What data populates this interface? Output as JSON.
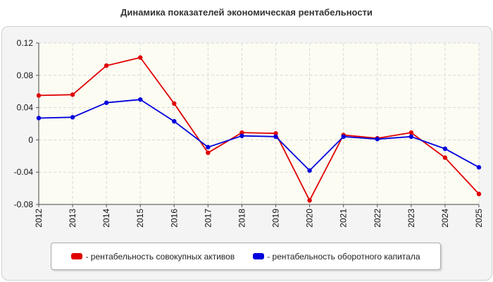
{
  "chart_data": {
    "type": "line",
    "title": "Динамика показателей экономическая рентабельности",
    "xlabel": "",
    "ylabel": "",
    "x": [
      "2012",
      "2013",
      "2014",
      "2015",
      "2016",
      "2017",
      "2018",
      "2019",
      "2020",
      "2021",
      "2022",
      "2023",
      "2024",
      "2025"
    ],
    "ylim": [
      -0.08,
      0.12
    ],
    "yticks": [
      0.12,
      0.08,
      0.04,
      0,
      -0.04,
      -0.08
    ],
    "ytick_labels": [
      "0.12",
      "0.08",
      "0.04",
      "0",
      "-0.04",
      "-0.08"
    ],
    "grid": true,
    "legend_position": "bottom",
    "series": [
      {
        "name": "- рентабельность совокупных активов",
        "color": "#e00000",
        "values": [
          0.055,
          0.056,
          0.092,
          0.102,
          0.045,
          -0.016,
          0.009,
          0.008,
          -0.075,
          0.006,
          0.002,
          0.009,
          -0.022,
          -0.067
        ]
      },
      {
        "name": "- рентабельность оборотного капитала",
        "color": "#0000dd",
        "values": [
          0.027,
          0.028,
          0.046,
          0.05,
          0.023,
          -0.009,
          0.005,
          0.004,
          -0.038,
          0.004,
          0.001,
          0.004,
          -0.011,
          -0.034
        ]
      }
    ]
  }
}
